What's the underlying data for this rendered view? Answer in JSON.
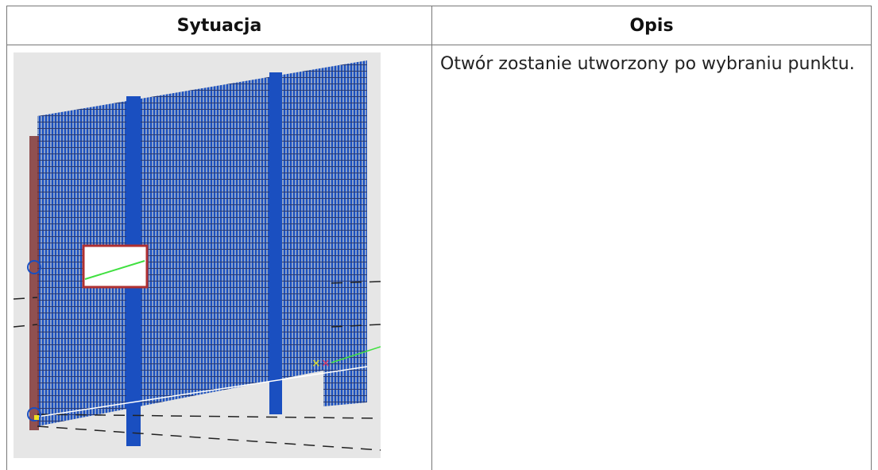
{
  "table": {
    "headers": [
      "Sytuacja",
      "Opis"
    ],
    "rows": [
      {
        "description": "Otwór zostanie utworzony po wybraniu punktu."
      }
    ]
  }
}
